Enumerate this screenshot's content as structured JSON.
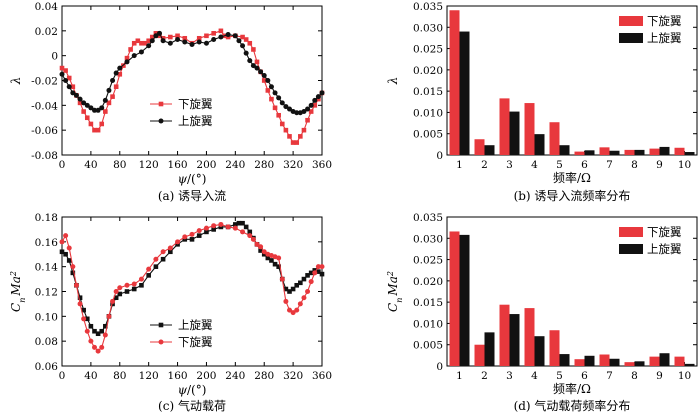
{
  "colors": {
    "lower": "#e8383d",
    "upper": "#111111",
    "axis": "#000000",
    "background": "#ffffff"
  },
  "chart_data": [
    {
      "id": "a",
      "type": "line",
      "caption": "(a) 诱导入流",
      "xlabel_sym": "ψ",
      "xlabel_unit": "/(°)",
      "ylabel": "λ",
      "xlim": [
        0,
        360
      ],
      "ylim": [
        -0.08,
        0.04
      ],
      "xticks": [
        0,
        40,
        80,
        120,
        160,
        200,
        240,
        280,
        320,
        360
      ],
      "xtick_labels": [
        "0",
        "40",
        "80",
        "120",
        "160",
        "200",
        "240",
        "280",
        "320",
        "360"
      ],
      "yticks": [
        -0.08,
        -0.06,
        -0.04,
        -0.02,
        0,
        0.02,
        0.04
      ],
      "ytick_labels": [
        "-0.08",
        "-0.06",
        "-0.04",
        "-0.02",
        "0",
        "0.02",
        "0.04"
      ],
      "legend": {
        "position": "bottom-left",
        "entries": [
          "下旋翼",
          "上旋翼"
        ]
      },
      "series": [
        {
          "name": "下旋翼",
          "color": "#e8383d",
          "marker": "square",
          "x": [
            0,
            5,
            10,
            15,
            20,
            25,
            30,
            35,
            40,
            45,
            50,
            55,
            60,
            65,
            70,
            75,
            80,
            85,
            90,
            95,
            100,
            105,
            110,
            115,
            120,
            125,
            130,
            135,
            140,
            150,
            160,
            170,
            180,
            190,
            200,
            210,
            220,
            225,
            230,
            240,
            250,
            255,
            260,
            265,
            270,
            275,
            280,
            285,
            290,
            295,
            300,
            305,
            310,
            315,
            320,
            325,
            330,
            335,
            340,
            345,
            350,
            355,
            360
          ],
          "y": [
            -0.01,
            -0.012,
            -0.018,
            -0.025,
            -0.032,
            -0.038,
            -0.045,
            -0.05,
            -0.055,
            -0.06,
            -0.06,
            -0.055,
            -0.045,
            -0.038,
            -0.033,
            -0.025,
            -0.015,
            -0.008,
            -0.002,
            0.005,
            0.01,
            0.012,
            0.01,
            0.01,
            0.012,
            0.015,
            0.018,
            0.016,
            0.014,
            0.015,
            0.016,
            0.014,
            0.01,
            0.014,
            0.016,
            0.018,
            0.02,
            0.016,
            0.015,
            0.016,
            0.015,
            0.013,
            0.01,
            0.005,
            -0.005,
            -0.013,
            -0.02,
            -0.028,
            -0.035,
            -0.042,
            -0.048,
            -0.055,
            -0.06,
            -0.065,
            -0.07,
            -0.07,
            -0.065,
            -0.06,
            -0.052,
            -0.045,
            -0.04,
            -0.035,
            -0.03
          ]
        },
        {
          "name": "上旋翼",
          "color": "#111111",
          "marker": "circle",
          "x": [
            0,
            5,
            10,
            15,
            20,
            25,
            30,
            35,
            40,
            45,
            50,
            55,
            60,
            65,
            70,
            75,
            80,
            90,
            100,
            110,
            120,
            125,
            130,
            135,
            140,
            150,
            160,
            170,
            180,
            190,
            200,
            210,
            220,
            230,
            240,
            245,
            250,
            255,
            260,
            265,
            270,
            275,
            280,
            285,
            290,
            295,
            300,
            305,
            310,
            315,
            320,
            325,
            330,
            335,
            340,
            345,
            350,
            355,
            360
          ],
          "y": [
            -0.015,
            -0.02,
            -0.025,
            -0.03,
            -0.032,
            -0.035,
            -0.038,
            -0.04,
            -0.042,
            -0.044,
            -0.044,
            -0.042,
            -0.036,
            -0.028,
            -0.02,
            -0.014,
            -0.01,
            -0.005,
            0.0,
            0.003,
            0.008,
            0.012,
            0.016,
            0.018,
            0.012,
            0.01,
            0.013,
            0.011,
            0.009,
            0.011,
            0.01,
            0.013,
            0.015,
            0.017,
            0.016,
            0.012,
            0.008,
            0.002,
            -0.004,
            -0.008,
            -0.01,
            -0.013,
            -0.016,
            -0.02,
            -0.025,
            -0.03,
            -0.034,
            -0.038,
            -0.041,
            -0.043,
            -0.045,
            -0.046,
            -0.046,
            -0.045,
            -0.043,
            -0.04,
            -0.036,
            -0.033,
            -0.03
          ]
        }
      ]
    },
    {
      "id": "b",
      "type": "bar",
      "caption": "(b) 诱导入流频率分布",
      "xlabel": "频率/Ω",
      "ylabel": "λ",
      "categories": [
        "1",
        "2",
        "3",
        "4",
        "5",
        "6",
        "7",
        "8",
        "9",
        "10"
      ],
      "ylim": [
        0,
        0.035
      ],
      "yticks": [
        0,
        0.005,
        0.01,
        0.015,
        0.02,
        0.025,
        0.03,
        0.035
      ],
      "ytick_labels": [
        "0",
        "0.005",
        "0.010",
        "0.015",
        "0.020",
        "0.025",
        "0.030",
        "0.035"
      ],
      "legend": {
        "position": "top-right",
        "entries": [
          "下旋翼",
          "上旋翼"
        ]
      },
      "series": [
        {
          "name": "下旋翼",
          "color": "#e8383d",
          "values": [
            0.034,
            0.0037,
            0.0133,
            0.0122,
            0.0077,
            0.0008,
            0.0018,
            0.0012,
            0.0015,
            0.0017
          ]
        },
        {
          "name": "上旋翼",
          "color": "#111111",
          "values": [
            0.029,
            0.0023,
            0.0102,
            0.0049,
            0.0023,
            0.0011,
            0.001,
            0.0012,
            0.0019,
            0.0007
          ]
        }
      ]
    },
    {
      "id": "c",
      "type": "line",
      "caption": "(c) 气动载荷",
      "xlabel_sym": "ψ",
      "xlabel_unit": "/(°)",
      "ylabel_main": "C",
      "ylabel_sub": "n",
      "ylabel_rest": "Ma",
      "ylabel_sup": "2",
      "xlim": [
        0,
        360
      ],
      "ylim": [
        0.06,
        0.18
      ],
      "xticks": [
        0,
        40,
        80,
        120,
        160,
        200,
        240,
        280,
        320,
        360
      ],
      "xtick_labels": [
        "0",
        "40",
        "80",
        "120",
        "160",
        "200",
        "240",
        "280",
        "320",
        "360"
      ],
      "yticks": [
        0.06,
        0.08,
        0.1,
        0.12,
        0.14,
        0.16,
        0.18
      ],
      "ytick_labels": [
        "0.06",
        "0.08",
        "0.10",
        "0.12",
        "0.14",
        "0.16",
        "0.18"
      ],
      "legend": {
        "position": "bottom-center",
        "entries": [
          "上旋翼",
          "下旋翼"
        ]
      },
      "series": [
        {
          "name": "上旋翼",
          "color": "#111111",
          "marker": "square",
          "x": [
            0,
            5,
            10,
            15,
            20,
            25,
            30,
            35,
            40,
            45,
            50,
            55,
            60,
            65,
            70,
            75,
            80,
            90,
            100,
            110,
            120,
            130,
            140,
            150,
            160,
            170,
            180,
            190,
            200,
            210,
            220,
            230,
            240,
            245,
            250,
            255,
            260,
            265,
            270,
            275,
            280,
            285,
            290,
            295,
            300,
            305,
            310,
            315,
            320,
            325,
            330,
            335,
            340,
            345,
            350,
            355,
            360
          ],
          "y": [
            0.152,
            0.15,
            0.145,
            0.135,
            0.125,
            0.115,
            0.105,
            0.098,
            0.092,
            0.088,
            0.086,
            0.088,
            0.092,
            0.1,
            0.11,
            0.115,
            0.118,
            0.12,
            0.122,
            0.125,
            0.133,
            0.14,
            0.146,
            0.152,
            0.158,
            0.162,
            0.162,
            0.165,
            0.168,
            0.17,
            0.172,
            0.172,
            0.174,
            0.175,
            0.175,
            0.172,
            0.168,
            0.163,
            0.158,
            0.153,
            0.15,
            0.147,
            0.145,
            0.142,
            0.14,
            0.13,
            0.122,
            0.12,
            0.122,
            0.125,
            0.127,
            0.13,
            0.133,
            0.135,
            0.137,
            0.136,
            0.134
          ]
        },
        {
          "name": "下旋翼",
          "color": "#e8383d",
          "marker": "circle",
          "x": [
            0,
            5,
            10,
            15,
            20,
            25,
            30,
            35,
            40,
            45,
            50,
            55,
            60,
            65,
            70,
            75,
            80,
            90,
            100,
            110,
            120,
            130,
            140,
            150,
            160,
            170,
            180,
            190,
            200,
            210,
            220,
            230,
            240,
            250,
            260,
            265,
            270,
            275,
            280,
            285,
            290,
            295,
            300,
            305,
            310,
            315,
            320,
            325,
            330,
            335,
            340,
            345,
            350,
            355,
            360
          ],
          "y": [
            0.16,
            0.165,
            0.155,
            0.14,
            0.125,
            0.11,
            0.098,
            0.088,
            0.08,
            0.075,
            0.072,
            0.075,
            0.085,
            0.1,
            0.112,
            0.12,
            0.123,
            0.125,
            0.126,
            0.13,
            0.138,
            0.146,
            0.152,
            0.155,
            0.16,
            0.164,
            0.166,
            0.169,
            0.171,
            0.173,
            0.174,
            0.172,
            0.171,
            0.168,
            0.165,
            0.162,
            0.158,
            0.156,
            0.152,
            0.15,
            0.149,
            0.148,
            0.147,
            0.13,
            0.112,
            0.105,
            0.103,
            0.105,
            0.11,
            0.115,
            0.12,
            0.128,
            0.135,
            0.14,
            0.14
          ]
        }
      ]
    },
    {
      "id": "d",
      "type": "bar",
      "caption": "(d) 气动载荷频率分布",
      "xlabel": "频率/Ω",
      "ylabel_main": "C",
      "ylabel_sub": "n",
      "ylabel_rest": "Ma",
      "ylabel_sup": "2",
      "categories": [
        "1",
        "2",
        "3",
        "4",
        "5",
        "6",
        "7",
        "8",
        "9",
        "10"
      ],
      "ylim": [
        0,
        0.035
      ],
      "yticks": [
        0,
        0.005,
        0.01,
        0.015,
        0.02,
        0.025,
        0.03,
        0.035
      ],
      "ytick_labels": [
        "0",
        "0.005",
        "0.010",
        "0.015",
        "0.020",
        "0.025",
        "0.030",
        "0.035"
      ],
      "legend": {
        "position": "top-right",
        "entries": [
          "下旋翼",
          "上旋翼"
        ]
      },
      "series": [
        {
          "name": "下旋翼",
          "color": "#e8383d",
          "values": [
            0.0316,
            0.005,
            0.0144,
            0.0136,
            0.0084,
            0.0016,
            0.0027,
            0.0009,
            0.0022,
            0.0022
          ]
        },
        {
          "name": "上旋翼",
          "color": "#111111",
          "values": [
            0.0308,
            0.0079,
            0.0122,
            0.007,
            0.0028,
            0.0024,
            0.0017,
            0.0011,
            0.003,
            0.0005
          ]
        }
      ]
    }
  ]
}
